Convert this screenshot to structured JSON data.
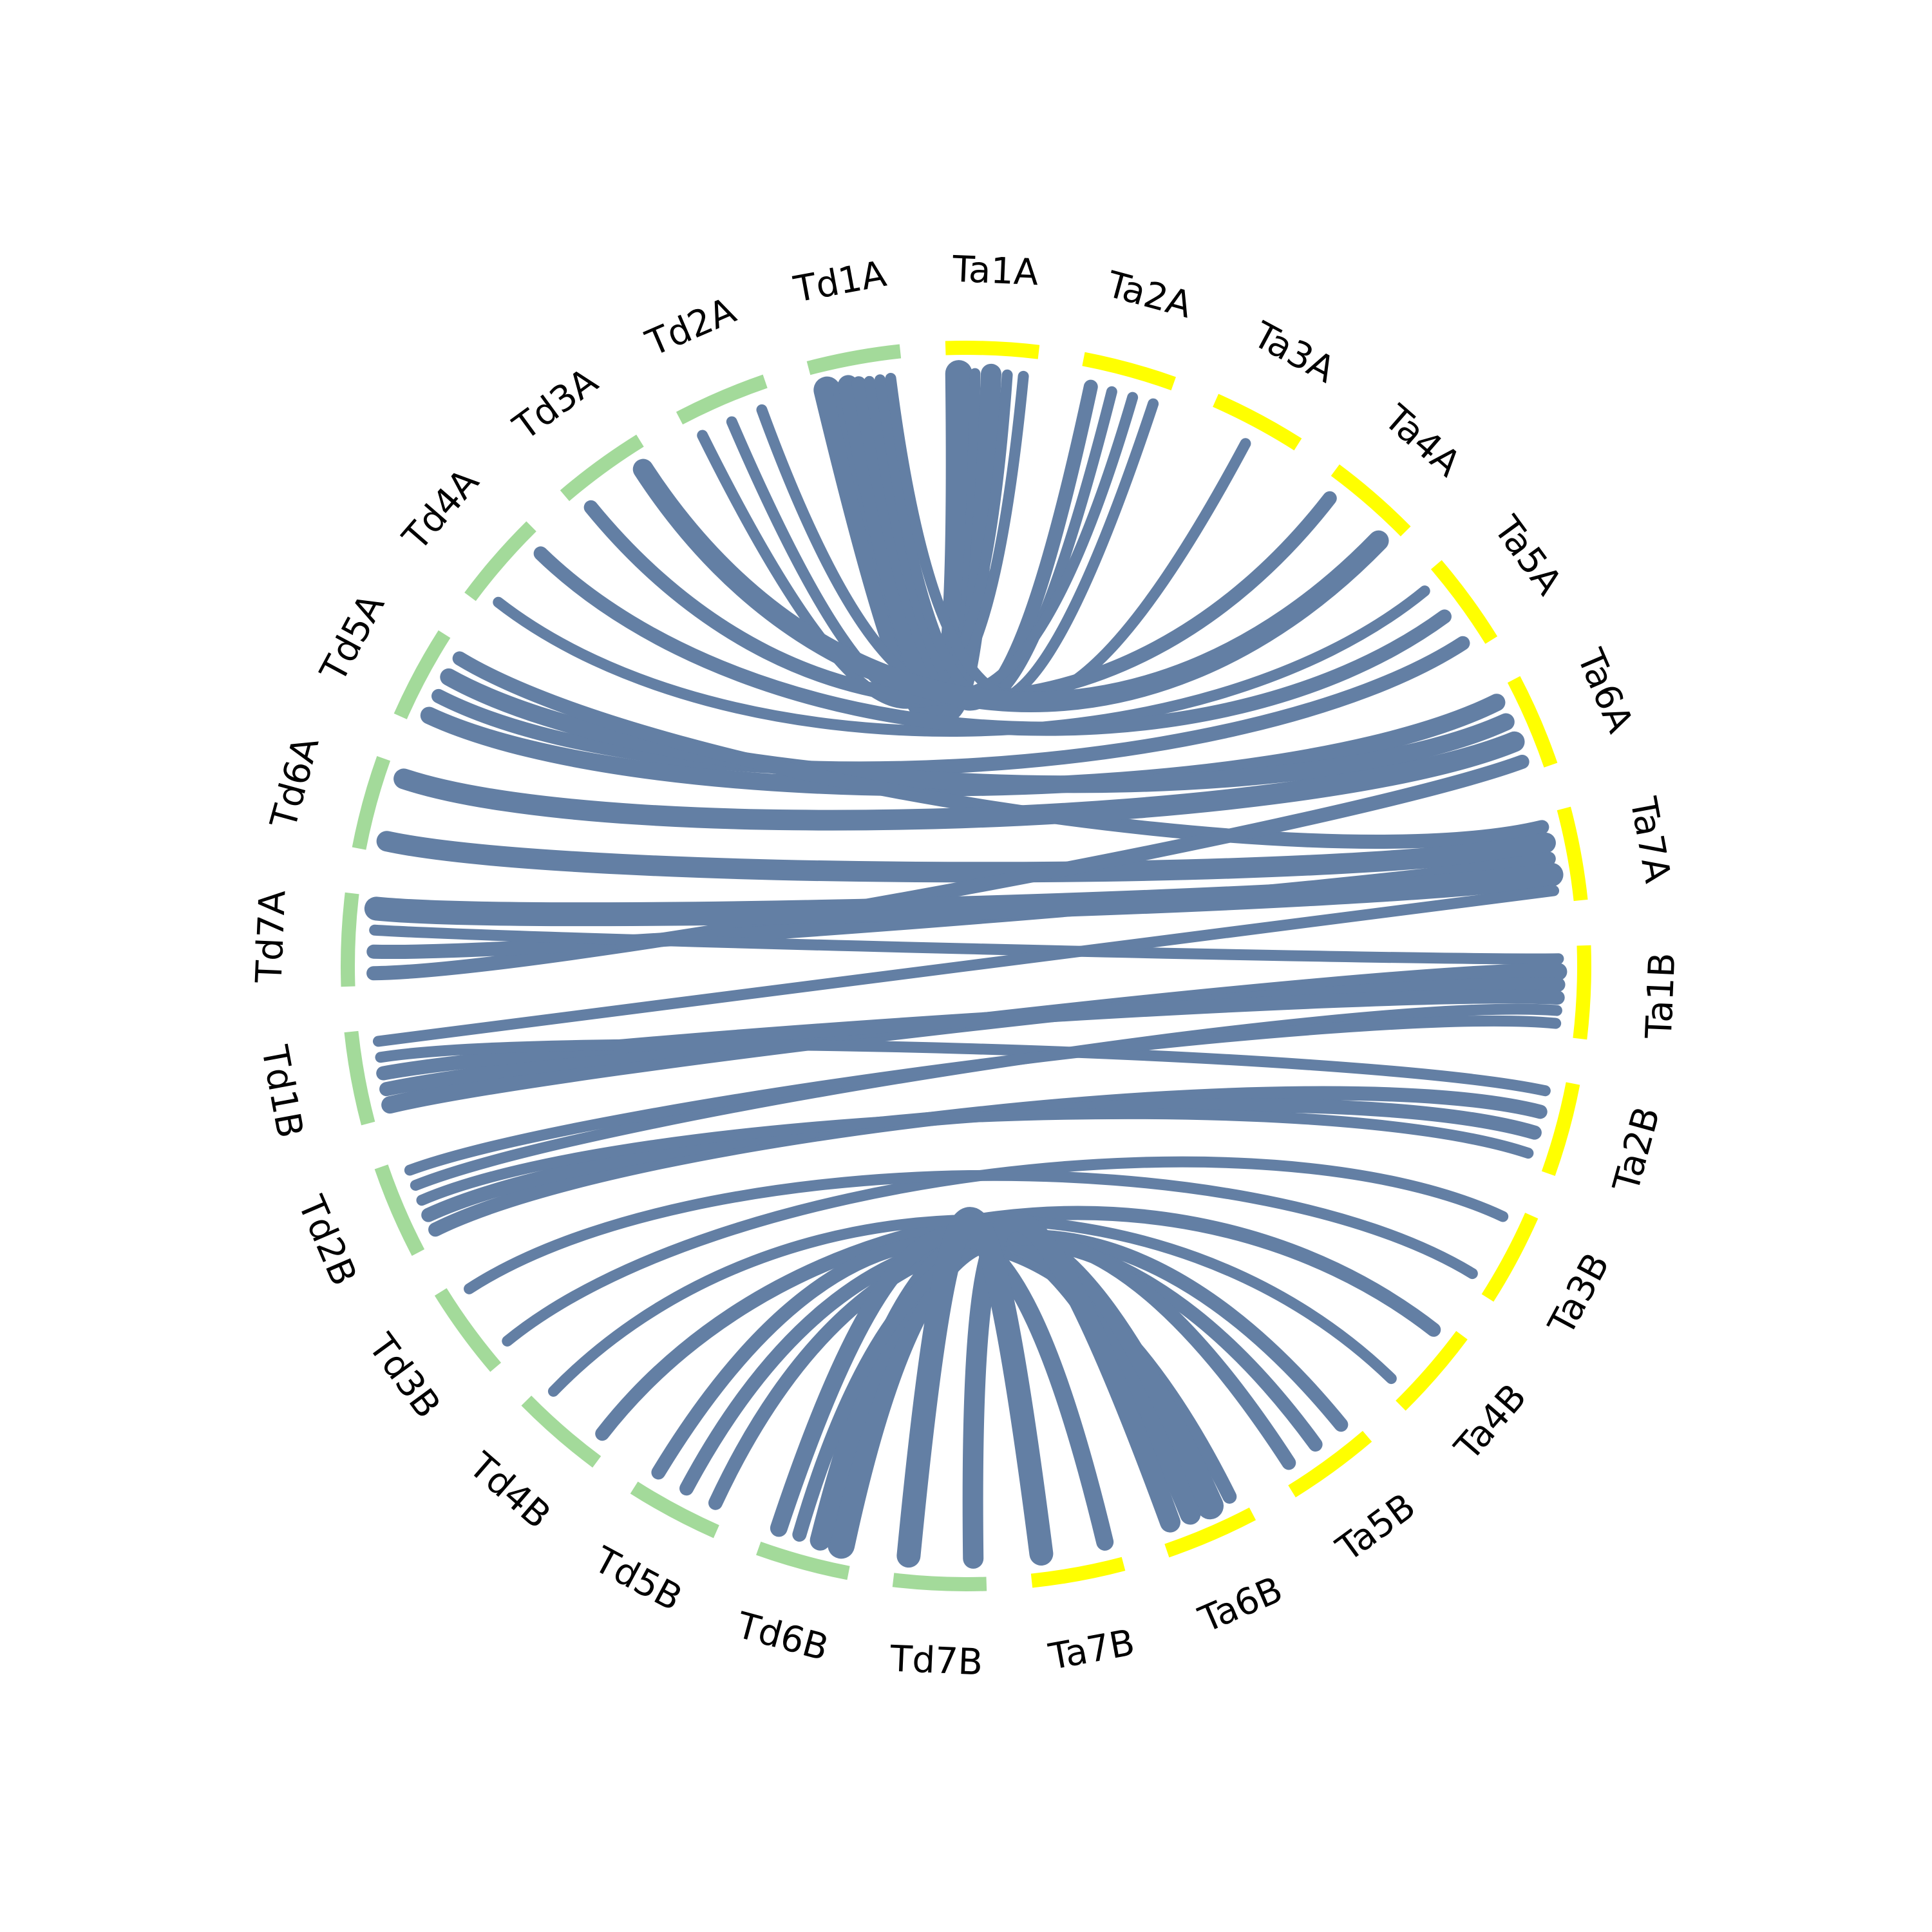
{
  "chart_data": {
    "type": "circos",
    "colors": {
      "td_segments": "#a3da9a",
      "ta_segments": "#ffff00",
      "links": "#637fa4",
      "labels": "#000000"
    },
    "segments": [
      {
        "id": "Ta1A",
        "label": "Ta1A",
        "group": "Ta"
      },
      {
        "id": "Ta2A",
        "label": "Ta2A",
        "group": "Ta"
      },
      {
        "id": "Ta3A",
        "label": "Ta3A",
        "group": "Ta"
      },
      {
        "id": "Ta4A",
        "label": "Ta4A",
        "group": "Ta"
      },
      {
        "id": "Ta5A",
        "label": "Ta5A",
        "group": "Ta"
      },
      {
        "id": "Ta6A",
        "label": "Ta6A",
        "group": "Ta"
      },
      {
        "id": "Ta7A",
        "label": "Ta7A",
        "group": "Ta"
      },
      {
        "id": "Ta1B",
        "label": "Ta1B",
        "group": "Ta"
      },
      {
        "id": "Ta2B",
        "label": "Ta2B",
        "group": "Ta"
      },
      {
        "id": "Ta3B",
        "label": "Ta3B",
        "group": "Ta"
      },
      {
        "id": "Ta4B",
        "label": "Ta4B",
        "group": "Ta"
      },
      {
        "id": "Ta5B",
        "label": "Ta5B",
        "group": "Ta"
      },
      {
        "id": "Ta6B",
        "label": "Ta6B",
        "group": "Ta"
      },
      {
        "id": "Ta7B",
        "label": "Ta7B",
        "group": "Ta"
      },
      {
        "id": "Td7B",
        "label": "Td7B",
        "group": "Td"
      },
      {
        "id": "Td6B",
        "label": "Td6B",
        "group": "Td"
      },
      {
        "id": "Td5B",
        "label": "Td5B",
        "group": "Td"
      },
      {
        "id": "Td4B",
        "label": "Td4B",
        "group": "Td"
      },
      {
        "id": "Td3B",
        "label": "Td3B",
        "group": "Td"
      },
      {
        "id": "Td2B",
        "label": "Td2B",
        "group": "Td"
      },
      {
        "id": "Td1B",
        "label": "Td1B",
        "group": "Td"
      },
      {
        "id": "Td7A",
        "label": "Td7A",
        "group": "Td"
      },
      {
        "id": "Td6A",
        "label": "Td6A",
        "group": "Td"
      },
      {
        "id": "Td5A",
        "label": "Td5A",
        "group": "Td"
      },
      {
        "id": "Td4A",
        "label": "Td4A",
        "group": "Td"
      },
      {
        "id": "Td3A",
        "label": "Td3A",
        "group": "Td"
      },
      {
        "id": "Td2A",
        "label": "Td2A",
        "group": "Td"
      },
      {
        "id": "Td1A",
        "label": "Td1A",
        "group": "Td"
      }
    ],
    "links": [
      {
        "from": "Td1A",
        "to": "Ta1A",
        "count": 6
      },
      {
        "from": "Td1A",
        "to": "Ta1A",
        "count": 1
      },
      {
        "from": "Td1A",
        "to": "Ta1A",
        "count": 4
      },
      {
        "from": "Td1A",
        "to": "Ta2A",
        "count": 2
      },
      {
        "from": "Td1A",
        "to": "Ta2A",
        "count": 1
      },
      {
        "from": "Td2A",
        "to": "Ta1A",
        "count": 1
      },
      {
        "from": "Td2A",
        "to": "Ta1A",
        "count": 1
      },
      {
        "from": "Td2A",
        "to": "Ta2A",
        "count": 1
      },
      {
        "from": "Td1A",
        "to": "Ta2A",
        "count": 1
      },
      {
        "from": "Td1A",
        "to": "Ta3A",
        "count": 1
      },
      {
        "from": "Td3A",
        "to": "Ta4A",
        "count": 2
      },
      {
        "from": "Td3A",
        "to": "Ta4A",
        "count": 4
      },
      {
        "from": "Td4A",
        "to": "Ta5A",
        "count": 1
      },
      {
        "from": "Td4A",
        "to": "Ta5A",
        "count": 2
      },
      {
        "from": "Td5A",
        "to": "Ta6A",
        "count": 3
      },
      {
        "from": "Td5A",
        "to": "Ta5A",
        "count": 2
      },
      {
        "from": "Td5A",
        "to": "Ta6A",
        "count": 3
      },
      {
        "from": "Td5A",
        "to": "Ta7A",
        "count": 2
      },
      {
        "from": "Td6A",
        "to": "Ta7A",
        "count": 4
      },
      {
        "from": "Td6A",
        "to": "Ta6A",
        "count": 4
      },
      {
        "from": "Td7A",
        "to": "Ta6A",
        "count": 2
      },
      {
        "from": "Td7A",
        "to": "Ta7A",
        "count": 2
      },
      {
        "from": "Td7A",
        "to": "Ta1B",
        "count": 1
      },
      {
        "from": "Td7A",
        "to": "Ta7A",
        "count": 5
      },
      {
        "from": "Td1B",
        "to": "Ta1B",
        "count": 3
      },
      {
        "from": "Td1B",
        "to": "Ta1B",
        "count": 2
      },
      {
        "from": "Td1B",
        "to": "Ta1B",
        "count": 2
      },
      {
        "from": "Td1B",
        "to": "Ta2B",
        "count": 1
      },
      {
        "from": "Td1B",
        "to": "Ta7A",
        "count": 1
      },
      {
        "from": "Td2B",
        "to": "Ta2B",
        "count": 2
      },
      {
        "from": "Td2B",
        "to": "Ta2B",
        "count": 2
      },
      {
        "from": "Td2B",
        "to": "Ta2B",
        "count": 1
      },
      {
        "from": "Td2B",
        "to": "Ta1B",
        "count": 1
      },
      {
        "from": "Td2B",
        "to": "Ta1B",
        "count": 1
      },
      {
        "from": "Td3B",
        "to": "Ta3B",
        "count": 1
      },
      {
        "from": "Td3B",
        "to": "Ta3B",
        "count": 1
      },
      {
        "from": "Td4B",
        "to": "Ta4B",
        "count": 2
      },
      {
        "from": "Td4B",
        "to": "Ta4B",
        "count": 1
      },
      {
        "from": "Td5B",
        "to": "Ta5B",
        "count": 2
      },
      {
        "from": "Td5B",
        "to": "Ta5B",
        "count": 2
      },
      {
        "from": "Td5B",
        "to": "Ta6B",
        "count": 2
      },
      {
        "from": "Td6B",
        "to": "Ta6B",
        "count": 6
      },
      {
        "from": "Td6B",
        "to": "Ta6B",
        "count": 4
      },
      {
        "from": "Td6B",
        "to": "Ta5B",
        "count": 2
      },
      {
        "from": "Td6B",
        "to": "Ta7B",
        "count": 3
      },
      {
        "from": "Td7B",
        "to": "Ta6B",
        "count": 4
      },
      {
        "from": "Td7B",
        "to": "Ta7B",
        "count": 5
      }
    ]
  }
}
